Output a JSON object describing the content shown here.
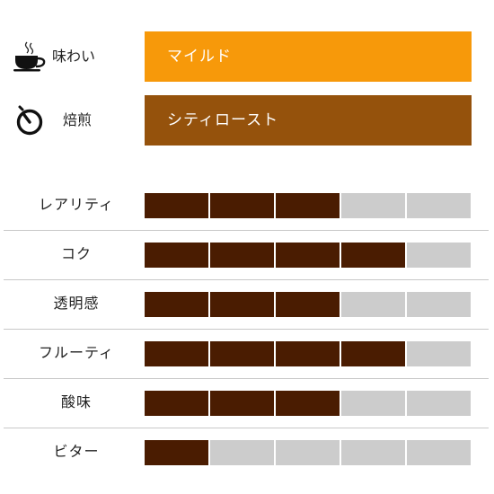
{
  "taste": {
    "label": "味わい",
    "value": "マイルド",
    "icon": "coffee-cup-icon",
    "color": "#f7990a"
  },
  "roast": {
    "label": "焙煎",
    "value": "シティロースト",
    "icon": "timer-icon",
    "color": "#95520c"
  },
  "rating_scale_max": 5,
  "filled_color": "#4a1c01",
  "empty_color": "#cccccc",
  "ratings": [
    {
      "label": "レアリティ",
      "value": 3
    },
    {
      "label": "コク",
      "value": 4
    },
    {
      "label": "透明感",
      "value": 3
    },
    {
      "label": "フルーティ",
      "value": 4
    },
    {
      "label": "酸味",
      "value": 3
    },
    {
      "label": "ビター",
      "value": 1
    }
  ]
}
